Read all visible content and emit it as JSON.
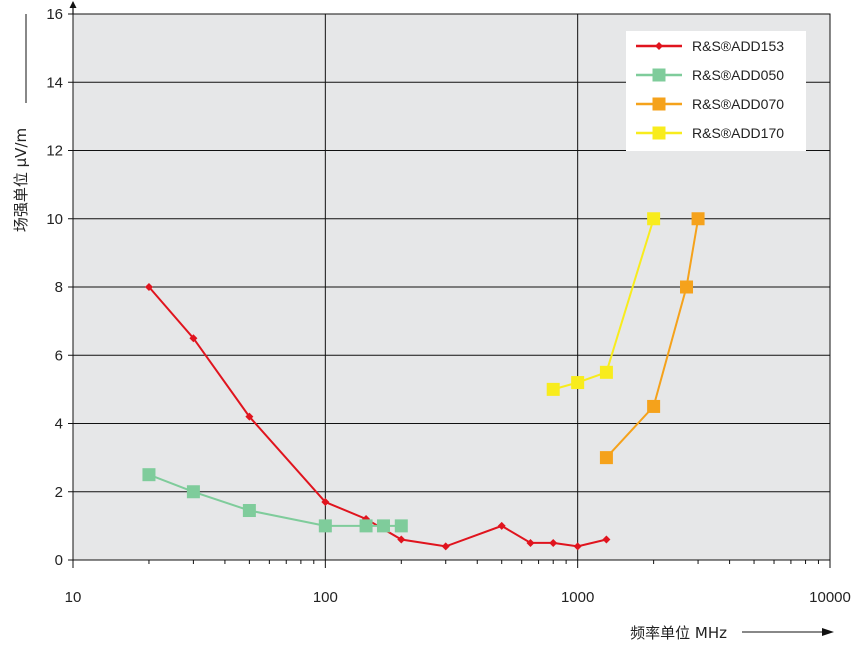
{
  "chart_data": {
    "type": "line",
    "x_scale": "log",
    "xlim": [
      10,
      10000
    ],
    "ylim": [
      0,
      16
    ],
    "xlabel": "频率单位 MHz",
    "ylabel": "场强单位 µV/m",
    "x_ticks": [
      "10",
      "100",
      "1000",
      "10000"
    ],
    "y_ticks": [
      "0",
      "2",
      "4",
      "6",
      "8",
      "10",
      "12",
      "14",
      "16"
    ],
    "grid": true,
    "legend_position": "top-right",
    "series": [
      {
        "name": "R&S®ADD153",
        "color": "#e0141e",
        "marker": "diamond",
        "x": [
          20,
          30,
          50,
          100,
          145,
          200,
          300,
          500,
          650,
          800,
          1000,
          1300
        ],
        "y": [
          8.0,
          6.5,
          4.2,
          1.7,
          1.2,
          0.6,
          0.4,
          1.0,
          0.5,
          0.5,
          0.4,
          0.6
        ]
      },
      {
        "name": "R&S®ADD050",
        "color": "#7fcc9b",
        "marker": "square",
        "x": [
          20,
          30,
          50,
          100,
          145,
          170,
          200
        ],
        "y": [
          2.5,
          2.0,
          1.45,
          1.0,
          1.0,
          1.0,
          1.0
        ]
      },
      {
        "name": "R&S®ADD070",
        "color": "#f5a21b",
        "marker": "square",
        "x": [
          1300,
          2000,
          2700,
          3000
        ],
        "y": [
          3.0,
          4.5,
          8.0,
          10.0
        ]
      },
      {
        "name": "R&S®ADD170",
        "color": "#f8ec1d",
        "marker": "square",
        "x": [
          800,
          1000,
          1300,
          2000
        ],
        "y": [
          5.0,
          5.2,
          5.5,
          10.0
        ]
      }
    ]
  }
}
